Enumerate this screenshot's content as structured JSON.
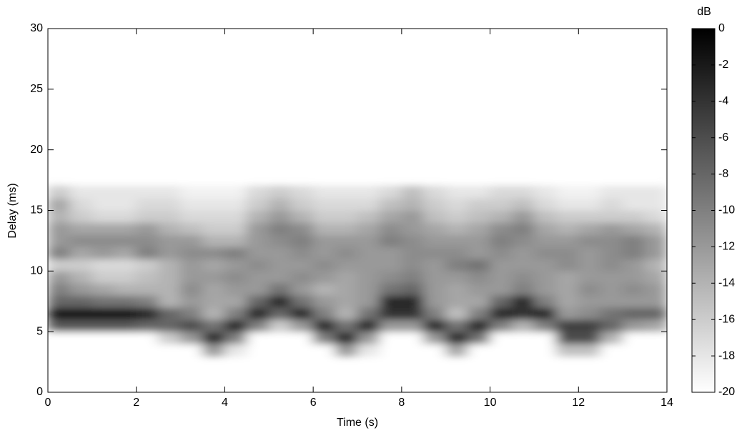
{
  "chart_data": {
    "type": "heatmap",
    "xlabel": "Time (s)",
    "ylabel": "Delay (ms)",
    "colorbar_label": "dB",
    "xlim": [
      0,
      14
    ],
    "xticks": [
      0,
      2,
      4,
      6,
      8,
      10,
      12,
      14
    ],
    "ylim": [
      0,
      30
    ],
    "yticks": [
      0,
      5,
      10,
      15,
      20,
      25,
      30
    ],
    "clim": [
      -20,
      0
    ],
    "cticks": [
      0,
      -2,
      -4,
      -6,
      -8,
      -10,
      -12,
      -14,
      -16,
      -18,
      -20
    ],
    "colormap": "gray",
    "x": [
      0.25,
      0.75,
      1.25,
      1.75,
      2.25,
      2.75,
      3.25,
      3.75,
      4.25,
      4.75,
      5.25,
      5.75,
      6.25,
      6.75,
      7.25,
      7.75,
      8.25,
      8.75,
      9.25,
      9.75,
      10.25,
      10.75,
      11.25,
      11.75,
      12.25,
      12.75,
      13.25,
      13.75
    ],
    "y": [
      3.5,
      4.5,
      5.5,
      6.5,
      7.5,
      8.5,
      9.5,
      10.5,
      11.5,
      12.5,
      13.5,
      14.5,
      15.5,
      16.5
    ],
    "z": [
      [
        -20,
        -20,
        -20,
        -20,
        -20,
        -20,
        -20,
        -12,
        -18,
        -20,
        -20,
        -20,
        -20,
        -12,
        -18,
        -20,
        -20,
        -20,
        -13,
        -20,
        -20,
        -20,
        -20,
        -15,
        -15,
        -20,
        -20,
        -20
      ],
      [
        -20,
        -20,
        -20,
        -20,
        -20,
        -16,
        -12,
        -3,
        -10,
        -20,
        -20,
        -20,
        -10,
        -3,
        -12,
        -20,
        -20,
        -12,
        -3,
        -9,
        -20,
        -20,
        -20,
        -6,
        -6,
        -14,
        -20,
        -20
      ],
      [
        -7,
        -7,
        -7,
        -7,
        -8,
        -8,
        -6,
        -9,
        -3,
        -10,
        -16,
        -12,
        -3,
        -9,
        -3,
        -12,
        -12,
        -3,
        -9,
        -3,
        -10,
        -14,
        -10,
        -5,
        -5,
        -8,
        -12,
        -13
      ],
      [
        -2,
        -2,
        -2,
        -2,
        -3,
        -8,
        -10,
        -14,
        -10,
        -3,
        -8,
        -3,
        -10,
        -14,
        -9,
        -4,
        -4,
        -10,
        -15,
        -10,
        -3,
        -4,
        -3,
        -12,
        -11,
        -9,
        -8,
        -8
      ],
      [
        -8,
        -8,
        -9,
        -9,
        -10,
        -14,
        -12,
        -13,
        -13,
        -8,
        -3,
        -9,
        -12,
        -13,
        -12,
        -3,
        -3,
        -12,
        -13,
        -13,
        -8,
        -3,
        -10,
        -13,
        -12,
        -12,
        -12,
        -12
      ],
      [
        -10,
        -12,
        -13,
        -14,
        -14,
        -14,
        -11,
        -13,
        -12,
        -12,
        -9,
        -12,
        -14,
        -13,
        -12,
        -9,
        -8,
        -12,
        -13,
        -12,
        -12,
        -10,
        -12,
        -13,
        -11,
        -12,
        -11,
        -12
      ],
      [
        -12,
        -14,
        -16,
        -16,
        -15,
        -14,
        -12,
        -12,
        -11,
        -12,
        -12,
        -11,
        -12,
        -13,
        -12,
        -11,
        -10,
        -12,
        -12,
        -11,
        -12,
        -11,
        -12,
        -13,
        -12,
        -12,
        -12,
        -13
      ],
      [
        -16,
        -16,
        -17,
        -17,
        -16,
        -14,
        -12,
        -13,
        -12,
        -11,
        -12,
        -12,
        -11,
        -12,
        -12,
        -12,
        -11,
        -12,
        -10,
        -9,
        -12,
        -12,
        -12,
        -11,
        -12,
        -11,
        -12,
        -14
      ],
      [
        -10,
        -13,
        -12,
        -13,
        -10,
        -12,
        -11,
        -11,
        -10,
        -12,
        -12,
        -11,
        -12,
        -11,
        -12,
        -12,
        -11,
        -11,
        -11,
        -12,
        -11,
        -12,
        -11,
        -11,
        -12,
        -11,
        -10,
        -12
      ],
      [
        -12,
        -11,
        -11,
        -11,
        -11,
        -12,
        -12,
        -14,
        -14,
        -12,
        -11,
        -10,
        -12,
        -12,
        -12,
        -10,
        -11,
        -12,
        -12,
        -12,
        -10,
        -11,
        -12,
        -12,
        -11,
        -11,
        -10,
        -12
      ],
      [
        -12,
        -13,
        -13,
        -13,
        -12,
        -14,
        -15,
        -16,
        -16,
        -12,
        -10,
        -11,
        -14,
        -14,
        -13,
        -11,
        -12,
        -13,
        -14,
        -13,
        -11,
        -10,
        -13,
        -14,
        -13,
        -12,
        -13,
        -14
      ],
      [
        -14,
        -16,
        -17,
        -17,
        -16,
        -16,
        -17,
        -17,
        -17,
        -14,
        -12,
        -14,
        -16,
        -16,
        -15,
        -13,
        -12,
        -15,
        -16,
        -15,
        -14,
        -12,
        -15,
        -16,
        -16,
        -16,
        -16,
        -17
      ],
      [
        -13,
        -17,
        -18,
        -18,
        -17,
        -17,
        -18,
        -18,
        -18,
        -16,
        -14,
        -16,
        -17,
        -17,
        -17,
        -15,
        -14,
        -16,
        -17,
        -16,
        -16,
        -15,
        -17,
        -18,
        -18,
        -17,
        -18,
        -18
      ],
      [
        -16,
        -18,
        -18,
        -18,
        -18,
        -18,
        -19,
        -19,
        -19,
        -17,
        -16,
        -17,
        -18,
        -18,
        -18,
        -17,
        -15,
        -17,
        -18,
        -18,
        -17,
        -17,
        -18,
        -19,
        -19,
        -18,
        -18,
        -18
      ]
    ]
  }
}
